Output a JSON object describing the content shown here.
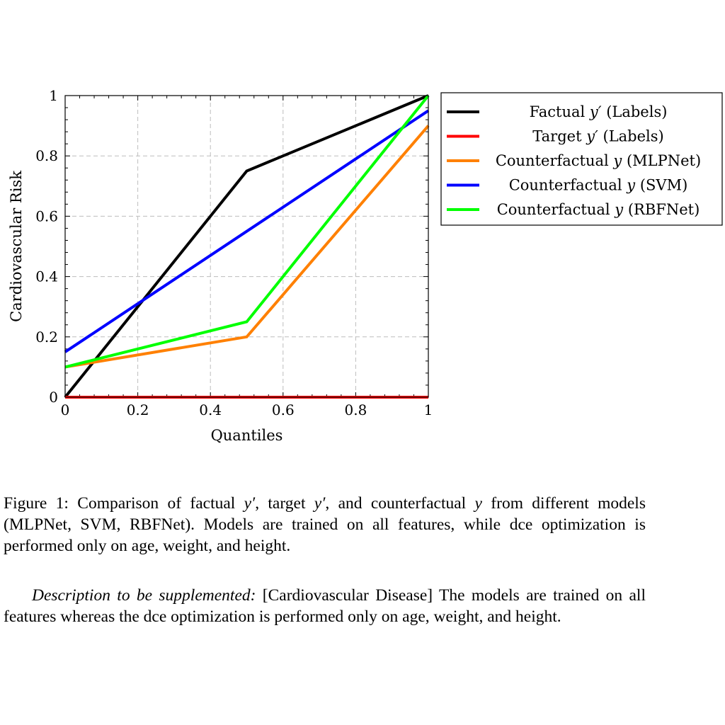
{
  "chart_data": {
    "type": "line",
    "title": "",
    "xlabel": "Quantiles",
    "ylabel": "Cardiovascular Risk",
    "xlim": [
      0,
      1
    ],
    "ylim": [
      0,
      1
    ],
    "x_ticks": [
      0,
      0.2,
      0.4,
      0.6,
      0.8,
      1
    ],
    "x_tick_labels": [
      "0",
      "0.2",
      "0.4",
      "0.6",
      "0.8",
      "1"
    ],
    "y_ticks": [
      0,
      0.2,
      0.4,
      0.6,
      0.8,
      1
    ],
    "y_tick_labels": [
      "0",
      "0.2",
      "0.4",
      "0.6",
      "0.8",
      "1"
    ],
    "grid": true,
    "legend_position": "outside-right-top",
    "series": [
      {
        "key": "factual",
        "legend": {
          "pre": "Factual ",
          "var": "y′",
          "post": " (Labels)"
        },
        "color": "#000000",
        "x": [
          0,
          0.5,
          1
        ],
        "y": [
          0,
          0.75,
          1
        ]
      },
      {
        "key": "target",
        "legend": {
          "pre": "Target ",
          "var": "y′",
          "post": " (Labels)"
        },
        "color": "#ff0000",
        "x": [
          0,
          0.5,
          1
        ],
        "y": [
          0,
          0,
          0
        ]
      },
      {
        "key": "mlpnet",
        "legend": {
          "pre": "Counterfactual ",
          "var": "y",
          "post": " (MLPNet)"
        },
        "color": "#ff8000",
        "x": [
          0,
          0.5,
          1
        ],
        "y": [
          0.1,
          0.2,
          0.9
        ]
      },
      {
        "key": "svm",
        "legend": {
          "pre": "Counterfactual ",
          "var": "y",
          "post": " (SVM)"
        },
        "color": "#0000ff",
        "x": [
          0,
          0.5,
          1
        ],
        "y": [
          0.15,
          0.55,
          0.95
        ]
      },
      {
        "key": "rbfnet",
        "legend": {
          "pre": "Counterfactual ",
          "var": "y",
          "post": " (RBFNet)"
        },
        "color": "#00ff00",
        "x": [
          0,
          0.5,
          1
        ],
        "y": [
          0.1,
          0.25,
          1
        ]
      }
    ]
  },
  "caption": {
    "p1": "Figure 1: Comparison of factual ",
    "v1": "y′",
    "p2": ", target ",
    "v2": "y′",
    "p3": ", and counterfactual ",
    "v3": "y",
    "p4": " from different models (MLPNet, SVM, RBFNet). Models are trained on all features, while dce optimization is performed only on age, weight, and height."
  },
  "description": {
    "label": "Description to be supplemented:",
    "text": " [Cardiovascular Disease] The models are trained on all features whereas the dce optimization is performed only on age, weight, and height."
  }
}
